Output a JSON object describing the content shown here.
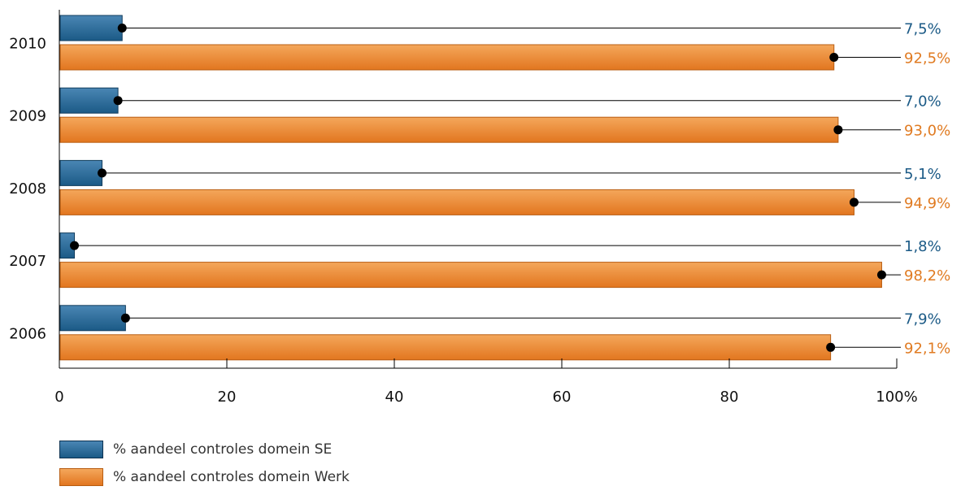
{
  "colors": {
    "series1": "#1b5a86",
    "series1_light": "#4a86b4",
    "series1_dark": "#113c5c",
    "series2": "#e2761f",
    "series2_light": "#f4a75b",
    "series2_dark": "#b85d12",
    "axis": "#000000",
    "tick_text": "#111111",
    "series1_label": "#1b5a86",
    "series2_label": "#e07b22"
  },
  "chart_data": {
    "type": "bar",
    "orientation": "horizontal",
    "categories": [
      "2010",
      "2009",
      "2008",
      "2007",
      "2006"
    ],
    "series": [
      {
        "name": "% aandeel controles domein SE",
        "values": [
          7.5,
          7.0,
          5.1,
          1.8,
          7.9
        ],
        "labels": [
          "7,5%",
          "7,0%",
          "5,1%",
          "1,8%",
          "7,9%"
        ]
      },
      {
        "name": "% aandeel controles domein Werk",
        "values": [
          92.5,
          93.0,
          94.9,
          98.2,
          92.1
        ],
        "labels": [
          "92,5%",
          "93,0%",
          "94,9%",
          "98,2%",
          "92,1%"
        ]
      }
    ],
    "x_ticks": [
      "0",
      "20",
      "40",
      "60",
      "80",
      "100%"
    ],
    "xlim": [
      0,
      100
    ],
    "legend_position": "bottom-left",
    "grid": false
  }
}
